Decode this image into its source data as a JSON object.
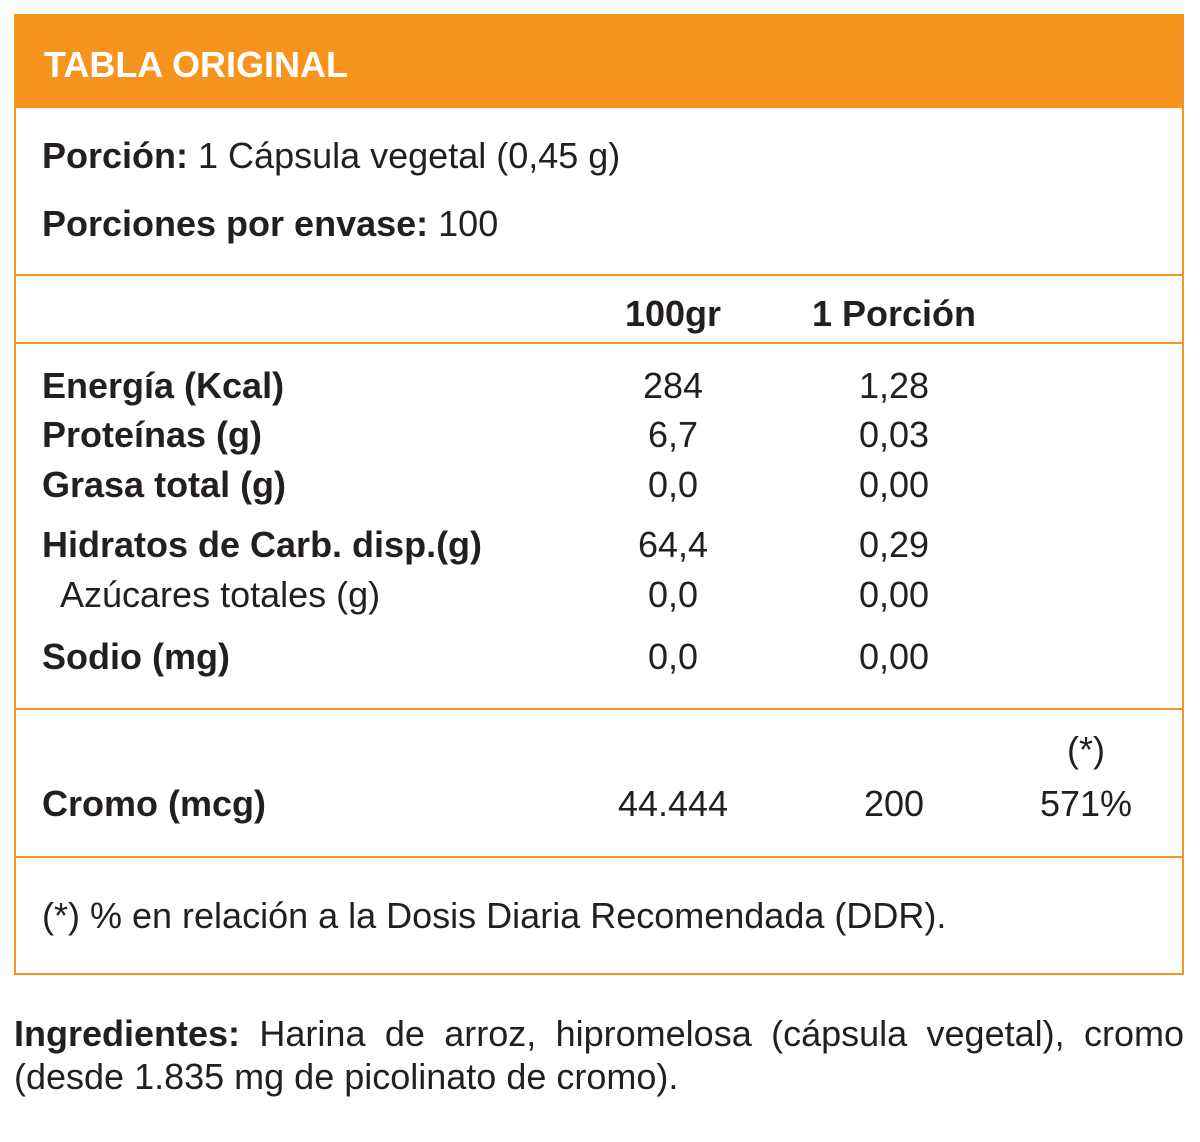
{
  "header": {
    "title": "TABLA ORIGINAL"
  },
  "serving": {
    "portion_label": "Porción:",
    "portion_value": "1 Cápsula vegetal (0,45 g)",
    "per_container_label": "Porciones por envase:",
    "per_container_value": "100"
  },
  "columns": {
    "per100": "100gr",
    "per_portion": "1 Porción"
  },
  "nutrients": [
    {
      "name": "Energía (Kcal)",
      "per100": "284",
      "per_portion": "1,28"
    },
    {
      "name": "Proteínas (g)",
      "per100": "6,7",
      "per_portion": "0,03"
    },
    {
      "name": "Grasa total (g)",
      "per100": "0,0",
      "per_portion": "0,00"
    },
    {
      "name": "Hidratos de Carb. disp.(g)",
      "per100": "64,4",
      "per_portion": "0,29"
    },
    {
      "name": "Azúcares totales (g)",
      "per100": "0,0",
      "per_portion": "0,00"
    },
    {
      "name": "Sodio (mg)",
      "per100": "0,0",
      "per_portion": "0,00"
    }
  ],
  "chromium": {
    "name": "Cromo (mcg)",
    "per100": "44.444",
    "per_portion": "200",
    "ddr_marker": "(*)",
    "ddr_percent": "571%"
  },
  "footnote": "(*) % en relación a la Dosis Diaria Recomendada (DDR).",
  "ingredients": {
    "label": "Ingredientes:",
    "text": " Harina de arroz, hipromelosa (cápsula vegetal), cromo (desde 1.835 mg de picolinato de cromo)."
  },
  "colors": {
    "accent": "#f7941d",
    "text": "#231f20",
    "header_text": "#ffffff"
  }
}
